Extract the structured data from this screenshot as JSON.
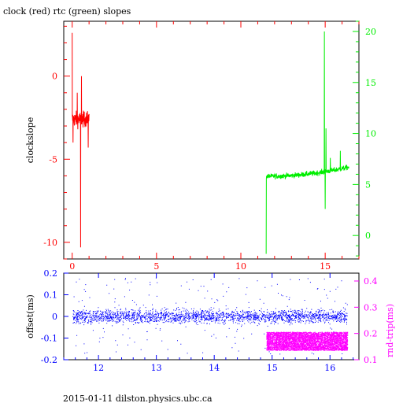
{
  "title": "clock (red) rtc (green) slopes",
  "footer": "2015-01-11  dilston.physics.ubc.ca",
  "colors": {
    "clock": "#ff0000",
    "rtc": "#00ee00",
    "offset": "#0000ff",
    "rtt": "#ff00ff",
    "axis": "#000000"
  },
  "chart_data": [
    {
      "type": "line",
      "title": "clock (red) rtc (green) slopes",
      "ylabel": "clockslope",
      "y2label": "",
      "xlim": [
        -0.5,
        17.0
      ],
      "ylim": [
        -11.0,
        3.3
      ],
      "y2lim": [
        -2.3,
        21.0
      ],
      "xticks": [
        0,
        5,
        10,
        15
      ],
      "yticks": [
        0,
        -5,
        -10
      ],
      "y2ticks": [
        0,
        5,
        10,
        15,
        20
      ],
      "grid": false,
      "series": [
        {
          "name": "clock",
          "axis": "left",
          "x_range": [
            0.0,
            1.0
          ],
          "level": -2.6,
          "noise": 0.45,
          "spikes": [
            [
              0.0,
              2.6
            ],
            [
              0.05,
              -4.0
            ],
            [
              0.5,
              -10.3
            ],
            [
              0.55,
              0.0
            ],
            [
              0.95,
              -4.3
            ],
            [
              0.3,
              -1.0
            ]
          ]
        },
        {
          "name": "rtc",
          "axis": "right",
          "x_range": [
            11.5,
            16.4
          ],
          "level": 5.8,
          "trend_end": 6.7,
          "noise": 0.25,
          "spikes": [
            [
              11.5,
              -1.8
            ],
            [
              14.95,
              20.0
            ],
            [
              15.0,
              2.6
            ],
            [
              15.05,
              10.5
            ],
            [
              15.9,
              8.3
            ],
            [
              15.3,
              7.6
            ]
          ]
        }
      ]
    },
    {
      "type": "scatter",
      "ylabel": "offset(ms)",
      "y2label": "rnd-trip(ms)",
      "xlim": [
        11.4,
        16.5
      ],
      "ylim": [
        -0.2,
        0.2
      ],
      "y2lim": [
        0.1,
        0.43
      ],
      "xticks": [
        12,
        13,
        14,
        15,
        16
      ],
      "yticks": [
        0.2,
        0.1,
        0,
        -0.1,
        -0.2
      ],
      "y2ticks": [
        0.4,
        0.3,
        0.2,
        0.1
      ],
      "grid": false,
      "series": [
        {
          "name": "offset",
          "axis": "left",
          "x_range": [
            11.55,
            16.3
          ],
          "center": 0.0,
          "core_spread": 0.03,
          "outlier_spread": 0.18
        },
        {
          "name": "rnd-trip",
          "axis": "right",
          "x_range": [
            14.9,
            16.3
          ],
          "center": 0.17,
          "core_spread": 0.035
        }
      ]
    }
  ]
}
